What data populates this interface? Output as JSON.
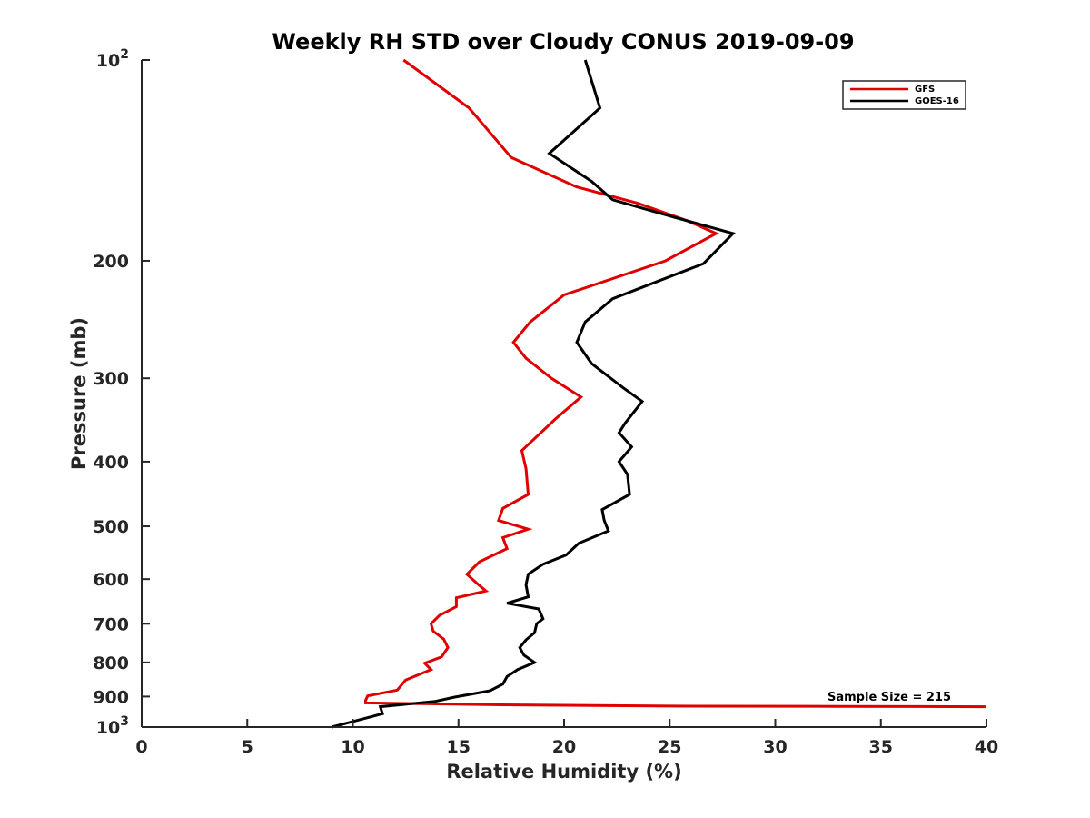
{
  "chart_data": {
    "type": "line",
    "title": "Weekly RH STD over Cloudy CONUS 2019-09-09",
    "xlabel": "Relative Humidity (%)",
    "ylabel": "Pressure (mb)",
    "xlim": [
      0,
      40
    ],
    "ylim": [
      100,
      1000
    ],
    "yscale": "log",
    "y_reversed": true,
    "grid": false,
    "legend_position": "top-right",
    "x_ticks": [
      {
        "value": 0,
        "label": "0"
      },
      {
        "value": 5,
        "label": "5"
      },
      {
        "value": 10,
        "label": "10"
      },
      {
        "value": 15,
        "label": "15"
      },
      {
        "value": 20,
        "label": "20"
      },
      {
        "value": 25,
        "label": "25"
      },
      {
        "value": 30,
        "label": "30"
      },
      {
        "value": 35,
        "label": "35"
      },
      {
        "value": 40,
        "label": "40"
      }
    ],
    "y_ticks": [
      {
        "value": 100,
        "base": "10",
        "exp": "2"
      },
      {
        "value": 200,
        "label": "200"
      },
      {
        "value": 300,
        "label": "300"
      },
      {
        "value": 400,
        "label": "400"
      },
      {
        "value": 500,
        "label": "500"
      },
      {
        "value": 600,
        "label": "600"
      },
      {
        "value": 700,
        "label": "700"
      },
      {
        "value": 800,
        "label": "800"
      },
      {
        "value": 900,
        "label": "900"
      },
      {
        "value": 1000,
        "base": "10",
        "exp": "3"
      }
    ],
    "annotation": "Sample Size = 215",
    "series": [
      {
        "name": "GFS",
        "color": "#e00000",
        "points": [
          [
            12.4,
            100
          ],
          [
            15.5,
            118
          ],
          [
            17.5,
            140
          ],
          [
            20.6,
            155
          ],
          [
            23.5,
            164
          ],
          [
            25.8,
            174
          ],
          [
            27.2,
            182
          ],
          [
            24.8,
            200
          ],
          [
            20.0,
            225
          ],
          [
            18.4,
            247
          ],
          [
            17.6,
            265
          ],
          [
            18.2,
            280
          ],
          [
            19.4,
            300
          ],
          [
            20.8,
            320
          ],
          [
            19.6,
            345
          ],
          [
            18.0,
            385
          ],
          [
            18.2,
            410
          ],
          [
            18.3,
            448
          ],
          [
            17.1,
            470
          ],
          [
            16.9,
            490
          ],
          [
            18.3,
            505
          ],
          [
            17.1,
            520
          ],
          [
            17.3,
            540
          ],
          [
            16.0,
            565
          ],
          [
            15.4,
            590
          ],
          [
            15.9,
            610
          ],
          [
            16.3,
            625
          ],
          [
            14.9,
            640
          ],
          [
            14.9,
            660
          ],
          [
            14.1,
            680
          ],
          [
            13.7,
            700
          ],
          [
            13.8,
            718
          ],
          [
            14.3,
            738
          ],
          [
            14.5,
            760
          ],
          [
            14.2,
            785
          ],
          [
            13.4,
            802
          ],
          [
            13.7,
            820
          ],
          [
            12.5,
            850
          ],
          [
            12.1,
            880
          ],
          [
            10.7,
            898
          ],
          [
            10.6,
            912
          ],
          [
            10.6,
            920
          ],
          [
            17.0,
            926
          ],
          [
            25.0,
            930
          ],
          [
            33.0,
            931
          ],
          [
            40.0,
            932
          ]
        ]
      },
      {
        "name": "GOES-16",
        "color": "#000000",
        "points": [
          [
            21.0,
            100
          ],
          [
            21.7,
            118
          ],
          [
            19.3,
            138
          ],
          [
            21.3,
            152
          ],
          [
            22.3,
            162
          ],
          [
            25.2,
            172
          ],
          [
            28.0,
            182
          ],
          [
            26.6,
            202
          ],
          [
            22.3,
            228
          ],
          [
            21.0,
            247
          ],
          [
            20.6,
            265
          ],
          [
            21.3,
            285
          ],
          [
            22.8,
            310
          ],
          [
            23.7,
            325
          ],
          [
            22.9,
            350
          ],
          [
            22.6,
            362
          ],
          [
            23.2,
            380
          ],
          [
            22.6,
            400
          ],
          [
            23.0,
            418
          ],
          [
            23.1,
            448
          ],
          [
            21.8,
            472
          ],
          [
            21.9,
            490
          ],
          [
            22.1,
            508
          ],
          [
            20.7,
            530
          ],
          [
            20.1,
            552
          ],
          [
            19.0,
            570
          ],
          [
            18.3,
            590
          ],
          [
            18.2,
            612
          ],
          [
            18.3,
            638
          ],
          [
            17.3,
            652
          ],
          [
            18.8,
            665
          ],
          [
            19.0,
            688
          ],
          [
            18.7,
            700
          ],
          [
            18.6,
            722
          ],
          [
            18.2,
            740
          ],
          [
            17.9,
            760
          ],
          [
            18.1,
            780
          ],
          [
            18.6,
            800
          ],
          [
            17.8,
            820
          ],
          [
            17.3,
            840
          ],
          [
            17.1,
            862
          ],
          [
            16.5,
            882
          ],
          [
            14.8,
            902
          ],
          [
            13.9,
            915
          ],
          [
            11.3,
            932
          ],
          [
            11.4,
            955
          ],
          [
            9.0,
            1000
          ]
        ]
      }
    ]
  }
}
